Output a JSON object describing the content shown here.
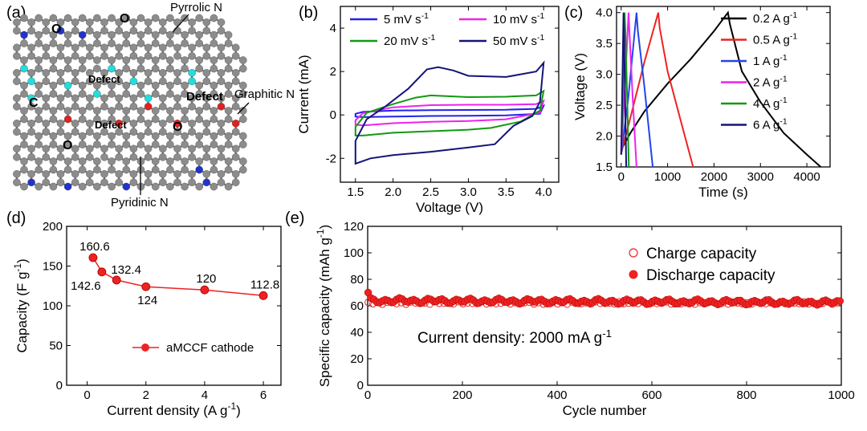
{
  "panels": {
    "a": {
      "label": "(a)",
      "annotations": {
        "pyrrolic": "Pyrrolic N",
        "graphitic": "Graphitic N",
        "pyridinic": "Pyridinic N",
        "defect": "Defect",
        "o": "O",
        "c": "C"
      },
      "atom_colors": {
        "carbon": "#8c8c8c",
        "oxygen": "#dd2222",
        "pyrrolic": "#33cc33",
        "graphitic": "#2233cc",
        "pyridinic": "#22dddd"
      }
    },
    "b": {
      "label": "(b)"
    },
    "c": {
      "label": "(c)"
    },
    "d": {
      "label": "(d)"
    },
    "e": {
      "label": "(e)"
    }
  },
  "chart_data": [
    {
      "id": "b",
      "type": "line",
      "xlabel": "Voltage (V)",
      "ylabel": "Current (mA)",
      "xlim": [
        1.3,
        4.2
      ],
      "ylim": [
        -3.1,
        5.0
      ],
      "xticks": [
        1.5,
        2.0,
        2.5,
        3.0,
        3.5,
        4.0
      ],
      "yticks": [
        -2,
        0,
        2,
        4
      ],
      "series": [
        {
          "name": "5 mV s-1",
          "color": "#2222ee",
          "points": [
            [
              1.5,
              0.05
            ],
            [
              1.6,
              0.14
            ],
            [
              2.0,
              0.2
            ],
            [
              2.5,
              0.22
            ],
            [
              3.0,
              0.23
            ],
            [
              3.5,
              0.24
            ],
            [
              3.9,
              0.28
            ],
            [
              4.0,
              0.42
            ],
            [
              3.95,
              0.05
            ],
            [
              3.5,
              -0.02
            ],
            [
              3.0,
              -0.04
            ],
            [
              2.5,
              -0.05
            ],
            [
              2.0,
              -0.08
            ],
            [
              1.6,
              -0.1
            ],
            [
              1.5,
              -0.08
            ],
            [
              1.5,
              0.05
            ]
          ]
        },
        {
          "name": "10 mV s-1",
          "color": "#ee22ee",
          "points": [
            [
              1.5,
              -0.25
            ],
            [
              1.6,
              0.08
            ],
            [
              2.0,
              0.35
            ],
            [
              2.5,
              0.45
            ],
            [
              3.0,
              0.47
            ],
            [
              3.5,
              0.47
            ],
            [
              3.9,
              0.5
            ],
            [
              4.0,
              0.65
            ],
            [
              3.95,
              0.1
            ],
            [
              3.5,
              -0.2
            ],
            [
              3.0,
              -0.28
            ],
            [
              2.5,
              -0.32
            ],
            [
              2.0,
              -0.38
            ],
            [
              1.6,
              -0.48
            ],
            [
              1.5,
              -0.45
            ],
            [
              1.5,
              -0.25
            ]
          ]
        },
        {
          "name": "20 mV s-1",
          "color": "#119911",
          "points": [
            [
              1.5,
              -0.55
            ],
            [
              1.65,
              0.1
            ],
            [
              2.0,
              0.5
            ],
            [
              2.3,
              0.8
            ],
            [
              2.5,
              0.9
            ],
            [
              3.0,
              0.82
            ],
            [
              3.5,
              0.84
            ],
            [
              3.9,
              0.9
            ],
            [
              4.0,
              1.1
            ],
            [
              3.95,
              0.2
            ],
            [
              3.7,
              -0.3
            ],
            [
              3.3,
              -0.6
            ],
            [
              3.0,
              -0.68
            ],
            [
              2.5,
              -0.75
            ],
            [
              2.0,
              -0.82
            ],
            [
              1.6,
              -0.95
            ],
            [
              1.5,
              -0.95
            ],
            [
              1.5,
              -0.55
            ]
          ]
        },
        {
          "name": "50 mV s-1",
          "color": "#141478",
          "points": [
            [
              1.5,
              -1.2
            ],
            [
              1.65,
              -0.2
            ],
            [
              1.9,
              0.4
            ],
            [
              2.2,
              1.2
            ],
            [
              2.45,
              2.1
            ],
            [
              2.6,
              2.2
            ],
            [
              2.8,
              2.05
            ],
            [
              3.0,
              1.8
            ],
            [
              3.5,
              1.75
            ],
            [
              3.9,
              2.0
            ],
            [
              4.0,
              2.4
            ],
            [
              3.95,
              0.6
            ],
            [
              3.85,
              -0.05
            ],
            [
              3.6,
              -0.5
            ],
            [
              3.35,
              -1.35
            ],
            [
              3.0,
              -1.5
            ],
            [
              2.5,
              -1.7
            ],
            [
              2.0,
              -1.85
            ],
            [
              1.7,
              -2.0
            ],
            [
              1.5,
              -2.25
            ],
            [
              1.5,
              -1.2
            ]
          ]
        }
      ]
    },
    {
      "id": "c",
      "type": "line",
      "xlabel": "Time (s)",
      "ylabel": "Voltage (V)",
      "xlim": [
        -100,
        4500
      ],
      "ylim": [
        1.5,
        4.1
      ],
      "xticks": [
        0,
        1000,
        2000,
        3000,
        4000
      ],
      "yticks": [
        1.5,
        2.0,
        2.5,
        3.0,
        3.5,
        4.0
      ],
      "series": [
        {
          "name": "0.2 A g-1",
          "color": "#000000",
          "points": [
            [
              0,
              1.78
            ],
            [
              200,
              2.05
            ],
            [
              500,
              2.4
            ],
            [
              1000,
              2.85
            ],
            [
              1500,
              3.25
            ],
            [
              2000,
              3.7
            ],
            [
              2300,
              4.0
            ],
            [
              2340,
              3.82
            ],
            [
              2600,
              3.05
            ],
            [
              3000,
              2.55
            ],
            [
              3500,
              2.05
            ],
            [
              4000,
              1.7
            ],
            [
              4300,
              1.5
            ]
          ]
        },
        {
          "name": "0.5 A g-1",
          "color": "#ee2222",
          "points": [
            [
              0,
              1.72
            ],
            [
              200,
              2.3
            ],
            [
              500,
              3.2
            ],
            [
              800,
              4.0
            ],
            [
              830,
              3.75
            ],
            [
              1000,
              3.05
            ],
            [
              1300,
              2.2
            ],
            [
              1550,
              1.5
            ]
          ]
        },
        {
          "name": "1 A g-1",
          "color": "#2244ee",
          "points": [
            [
              0,
              1.7
            ],
            [
              150,
              2.6
            ],
            [
              330,
              4.0
            ],
            [
              360,
              3.7
            ],
            [
              500,
              2.8
            ],
            [
              680,
              1.5
            ]
          ]
        },
        {
          "name": "2 A g-1",
          "color": "#ee22ee",
          "points": [
            [
              0,
              1.7
            ],
            [
              80,
              2.8
            ],
            [
              160,
              4.0
            ],
            [
              180,
              3.65
            ],
            [
              250,
              2.6
            ],
            [
              330,
              1.5
            ]
          ]
        },
        {
          "name": "4 A g-1",
          "color": "#119911",
          "points": [
            [
              0,
              1.7
            ],
            [
              40,
              2.8
            ],
            [
              75,
              4.0
            ],
            [
              90,
              3.7
            ],
            [
              130,
              2.6
            ],
            [
              165,
              1.5
            ]
          ]
        },
        {
          "name": "6 A g-1",
          "color": "#141478",
          "points": [
            [
              0,
              1.7
            ],
            [
              25,
              2.8
            ],
            [
              50,
              4.0
            ],
            [
              60,
              3.7
            ],
            [
              85,
              2.6
            ],
            [
              110,
              1.5
            ]
          ]
        }
      ]
    },
    {
      "id": "d",
      "type": "line",
      "xlabel": "Current density (A g-1)",
      "ylabel": "Capacity (F g-1)",
      "xlim": [
        -0.7,
        6.6
      ],
      "ylim": [
        0,
        200
      ],
      "xticks": [
        0,
        2,
        4,
        6
      ],
      "yticks": [
        0,
        50,
        100,
        150,
        200
      ],
      "series": [
        {
          "name": "aMCCF cathode",
          "color": "#ee2222",
          "x": [
            0.2,
            0.5,
            1,
            2,
            4,
            6
          ],
          "y": [
            160.6,
            142.6,
            132.4,
            124,
            120,
            112.8
          ]
        }
      ],
      "data_labels": [
        "160.6",
        "142.6",
        "132.4",
        "124",
        "120",
        "112.8"
      ]
    },
    {
      "id": "e",
      "type": "scatter",
      "xlabel": "Cycle number",
      "ylabel": "Specific capacity (mAh g-1)",
      "xlim": [
        0,
        1000
      ],
      "ylim": [
        0,
        120
      ],
      "xticks": [
        0,
        200,
        400,
        600,
        800,
        1000
      ],
      "yticks": [
        0,
        20,
        40,
        60,
        80,
        100,
        120
      ],
      "annotation": "Current density: 2000 mA g-1",
      "series": [
        {
          "name": "Charge capacity",
          "marker": "open-circle",
          "color": "#ee2222",
          "approx_value": 62
        },
        {
          "name": "Discharge capacity",
          "marker": "filled-circle",
          "color": "#ee2222",
          "first_value": 70,
          "approx_value": 64
        }
      ]
    }
  ]
}
